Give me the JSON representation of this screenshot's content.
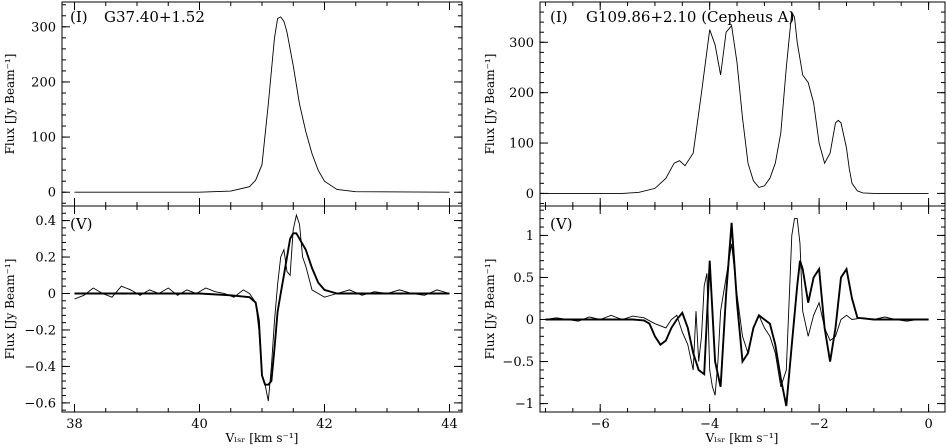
{
  "chart_data": [
    {
      "type": "line",
      "panel": "top-left",
      "label": "(I)",
      "title": "G37.40+1.52",
      "xlim": [
        37.8,
        44.2
      ],
      "ylim": [
        -25,
        345
      ],
      "xticks": [
        38,
        40,
        42,
        44
      ],
      "yticks": [
        0,
        100,
        200,
        300
      ],
      "xticklabels": [
        "",
        "",
        "",
        ""
      ],
      "yticklabels": [
        "0",
        "100",
        "200",
        "300"
      ],
      "ylabel": "Flux [Jy Beam⁻¹]",
      "xlabel": "",
      "series": [
        {
          "style": "thin",
          "x": [
            38.0,
            40.0,
            40.5,
            40.8,
            40.9,
            41.0,
            41.1,
            41.2,
            41.25,
            41.3,
            41.35,
            41.4,
            41.5,
            41.6,
            41.7,
            41.8,
            41.9,
            42.0,
            42.2,
            42.5,
            44.0
          ],
          "y": [
            0,
            0,
            2,
            10,
            22,
            50,
            160,
            280,
            315,
            318,
            310,
            290,
            230,
            160,
            110,
            70,
            40,
            20,
            5,
            1,
            0
          ]
        }
      ]
    },
    {
      "type": "line",
      "panel": "bottom-left",
      "label": "(V)",
      "title": "",
      "xlim": [
        37.8,
        44.2
      ],
      "ylim": [
        -0.65,
        0.48
      ],
      "xticks": [
        38,
        40,
        42,
        44
      ],
      "yticks": [
        -0.6,
        -0.4,
        -0.2,
        0,
        0.2,
        0.4
      ],
      "xticklabels": [
        "38",
        "40",
        "42",
        "44"
      ],
      "yticklabels": [
        "−0.6",
        "−0.4",
        "−0.2",
        "0",
        "0.2",
        "0.4"
      ],
      "ylabel": "Flux [Jy Beam⁻¹]",
      "xlabel": "Vₗₛᵣ [km s⁻¹]",
      "series": [
        {
          "style": "thin",
          "x": [
            38.0,
            38.15,
            38.3,
            38.45,
            38.6,
            38.75,
            38.9,
            39.05,
            39.2,
            39.35,
            39.5,
            39.65,
            39.8,
            39.95,
            40.1,
            40.25,
            40.4,
            40.55,
            40.7,
            40.8,
            40.9,
            40.95,
            41.0,
            41.05,
            41.1,
            41.15,
            41.2,
            41.25,
            41.3,
            41.35,
            41.4,
            41.45,
            41.5,
            41.55,
            41.6,
            41.65,
            41.7,
            41.8,
            41.9,
            42.0,
            42.2,
            42.4,
            42.6,
            42.8,
            43.0,
            43.2,
            43.4,
            43.6,
            43.8,
            44.0
          ],
          "y": [
            -0.03,
            -0.01,
            0.03,
            0.0,
            -0.02,
            0.04,
            0.02,
            -0.01,
            0.02,
            0.0,
            0.03,
            -0.01,
            0.02,
            0.0,
            0.03,
            0.01,
            0.0,
            -0.02,
            0.02,
            0.0,
            -0.05,
            -0.2,
            -0.45,
            -0.5,
            -0.59,
            -0.4,
            -0.15,
            0.05,
            0.2,
            0.24,
            0.12,
            0.1,
            0.35,
            0.43,
            0.38,
            0.2,
            0.15,
            0.02,
            0.0,
            -0.02,
            0.0,
            0.02,
            -0.01,
            0.01,
            0.0,
            0.02,
            0.0,
            -0.01,
            0.02,
            0.0
          ]
        },
        {
          "style": "thick",
          "x": [
            38.0,
            40.0,
            40.5,
            40.8,
            40.9,
            40.95,
            41.0,
            41.05,
            41.1,
            41.15,
            41.2,
            41.25,
            41.3,
            41.35,
            41.4,
            41.45,
            41.5,
            41.55,
            41.6,
            41.7,
            41.8,
            41.9,
            42.0,
            42.2,
            42.5,
            44.0
          ],
          "y": [
            0,
            0,
            -0.01,
            -0.02,
            -0.05,
            -0.15,
            -0.45,
            -0.5,
            -0.5,
            -0.48,
            -0.3,
            -0.1,
            0.0,
            0.1,
            0.2,
            0.3,
            0.33,
            0.33,
            0.3,
            0.24,
            0.14,
            0.06,
            0.02,
            0.0,
            0.0,
            0.0
          ]
        }
      ]
    },
    {
      "type": "line",
      "panel": "top-right",
      "label": "(I)",
      "title": "G109.86+2.10 (Cepheus A)",
      "xlim": [
        -7.1,
        0.3
      ],
      "ylim": [
        -25,
        380
      ],
      "xticks": [
        -6,
        -4,
        -2,
        0
      ],
      "yticks": [
        0,
        100,
        200,
        300
      ],
      "xticklabels": [
        "",
        "",
        "",
        ""
      ],
      "yticklabels": [
        "0",
        "100",
        "200",
        "300"
      ],
      "ylabel": "Flux [Jy Beam⁻¹]",
      "xlabel": "",
      "series": [
        {
          "style": "thin",
          "x": [
            -7.0,
            -5.6,
            -5.3,
            -5.0,
            -4.8,
            -4.65,
            -4.55,
            -4.45,
            -4.3,
            -4.15,
            -4.0,
            -3.9,
            -3.8,
            -3.7,
            -3.6,
            -3.5,
            -3.4,
            -3.3,
            -3.2,
            -3.1,
            -3.0,
            -2.9,
            -2.8,
            -2.7,
            -2.6,
            -2.5,
            -2.45,
            -2.4,
            -2.3,
            -2.2,
            -2.1,
            -2.0,
            -1.9,
            -1.8,
            -1.7,
            -1.65,
            -1.6,
            -1.5,
            -1.45,
            -1.4,
            -1.3,
            -1.2,
            -1.0,
            0.0
          ],
          "y": [
            0,
            0,
            2,
            10,
            30,
            60,
            65,
            55,
            80,
            200,
            325,
            295,
            235,
            320,
            333,
            260,
            150,
            60,
            25,
            12,
            15,
            30,
            60,
            120,
            250,
            360,
            350,
            300,
            235,
            220,
            180,
            100,
            60,
            80,
            140,
            145,
            140,
            90,
            50,
            20,
            5,
            1,
            0,
            0
          ]
        }
      ]
    },
    {
      "type": "line",
      "panel": "bottom-right",
      "label": "(V)",
      "title": "",
      "xlim": [
        -7.1,
        0.3
      ],
      "ylim": [
        -1.1,
        1.35
      ],
      "xticks": [
        -6,
        -4,
        -2,
        0
      ],
      "yticks": [
        -1,
        -0.5,
        0,
        0.5,
        1
      ],
      "xticklabels": [
        "−6",
        "−4",
        "−2",
        "0"
      ],
      "yticklabels": [
        "−1",
        "−0.5",
        "0",
        "0.5",
        "1"
      ],
      "ylabel": "Flux [Jy Beam⁻¹]",
      "xlabel": "Vₗₛᵣ [km s⁻¹]",
      "series": [
        {
          "style": "thin",
          "x": [
            -7.0,
            -6.8,
            -6.6,
            -6.4,
            -6.2,
            -6.0,
            -5.8,
            -5.6,
            -5.4,
            -5.2,
            -5.0,
            -4.8,
            -4.7,
            -4.6,
            -4.5,
            -4.4,
            -4.3,
            -4.25,
            -4.2,
            -4.15,
            -4.1,
            -4.05,
            -4.0,
            -3.95,
            -3.9,
            -3.85,
            -3.8,
            -3.7,
            -3.6,
            -3.5,
            -3.4,
            -3.3,
            -3.2,
            -3.1,
            -3.0,
            -2.9,
            -2.8,
            -2.7,
            -2.6,
            -2.5,
            -2.45,
            -2.4,
            -2.35,
            -2.3,
            -2.2,
            -2.1,
            -2.0,
            -1.9,
            -1.8,
            -1.7,
            -1.6,
            -1.5,
            -1.4,
            -1.2,
            -1.0,
            -0.8,
            -0.6,
            -0.4,
            -0.2,
            0.0
          ],
          "y": [
            0.0,
            0.02,
            0.0,
            -0.02,
            0.03,
            0.0,
            0.05,
            0.0,
            0.04,
            0.02,
            -0.05,
            -0.1,
            0.0,
            0.05,
            -0.15,
            -0.3,
            -0.6,
            0.1,
            -0.5,
            -0.2,
            0.4,
            0.55,
            -0.6,
            -0.8,
            -0.9,
            -0.5,
            0.1,
            0.5,
            0.9,
            0.3,
            -0.2,
            -0.4,
            -0.1,
            0.05,
            -0.1,
            -0.2,
            -0.4,
            -0.8,
            -0.6,
            1.0,
            1.2,
            1.2,
            0.9,
            0.1,
            -0.2,
            0.05,
            0.2,
            -0.1,
            -0.25,
            -0.2,
            0.0,
            0.05,
            0.0,
            0.02,
            0.0,
            0.03,
            0.0,
            -0.02,
            0.0,
            0.0
          ]
        },
        {
          "style": "thick",
          "x": [
            -7.0,
            -5.4,
            -5.2,
            -5.1,
            -5.0,
            -4.9,
            -4.8,
            -4.7,
            -4.6,
            -4.5,
            -4.4,
            -4.3,
            -4.2,
            -4.1,
            -4.0,
            -3.9,
            -3.8,
            -3.7,
            -3.6,
            -3.5,
            -3.4,
            -3.3,
            -3.2,
            -3.1,
            -3.0,
            -2.9,
            -2.8,
            -2.7,
            -2.6,
            -2.5,
            -2.4,
            -2.35,
            -2.3,
            -2.2,
            -2.1,
            -2.0,
            -1.9,
            -1.8,
            -1.7,
            -1.6,
            -1.5,
            -1.4,
            -1.3,
            -1.0,
            0.0
          ],
          "y": [
            0,
            0,
            -0.01,
            -0.05,
            -0.2,
            -0.3,
            -0.25,
            -0.1,
            0.0,
            0.08,
            -0.1,
            -0.4,
            -0.6,
            -0.65,
            0.7,
            -0.5,
            -0.8,
            0.3,
            1.15,
            0.2,
            -0.5,
            -0.4,
            -0.1,
            0.05,
            0.0,
            -0.05,
            -0.3,
            -0.7,
            -1.03,
            -0.3,
            0.4,
            0.7,
            0.6,
            0.2,
            0.5,
            0.6,
            -0.1,
            -0.5,
            -0.1,
            0.5,
            0.6,
            0.25,
            0.02,
            0.0,
            0.0
          ]
        }
      ]
    }
  ]
}
